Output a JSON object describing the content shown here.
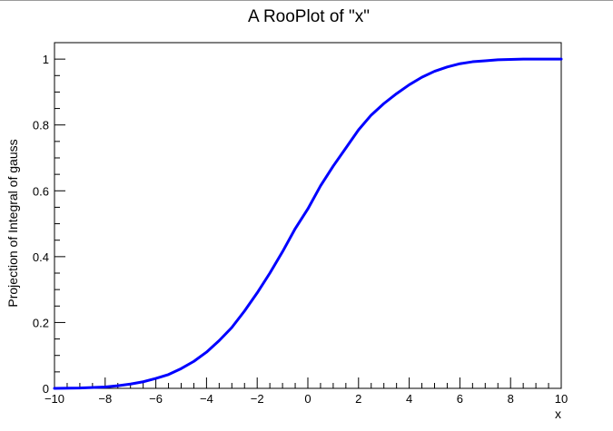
{
  "chart_data": {
    "type": "line",
    "title": "A RooPlot of \"x\"",
    "xlabel": "x",
    "ylabel": "Projection of Integral of gauss",
    "xlim": [
      -10,
      10
    ],
    "ylim": [
      0,
      1.05
    ],
    "grid": false,
    "legend": "none",
    "x_ticks": [
      "−10",
      "−8",
      "−6",
      "−4",
      "−2",
      "0",
      "2",
      "4",
      "6",
      "8",
      "10"
    ],
    "y_ticks": [
      "0",
      "0.2",
      "0.4",
      "0.6",
      "0.8",
      "1"
    ],
    "series": [
      {
        "color": "#0000ff",
        "x": [
          -10,
          -9,
          -8,
          -7.5,
          -7,
          -6.5,
          -6,
          -5.5,
          -5,
          -4.5,
          -4,
          -3.5,
          -3,
          -2.5,
          -2,
          -1.5,
          -1,
          -0.5,
          0,
          0.5,
          1,
          1.5,
          2,
          2.5,
          3,
          3.5,
          4,
          4.5,
          5,
          5.5,
          6,
          6.5,
          7,
          7.5,
          8,
          8.5,
          9,
          9.5,
          10
        ],
        "y": [
          0.0,
          0.001,
          0.004,
          0.008,
          0.013,
          0.02,
          0.03,
          0.042,
          0.06,
          0.082,
          0.11,
          0.145,
          0.185,
          0.235,
          0.29,
          0.35,
          0.415,
          0.485,
          0.545,
          0.615,
          0.675,
          0.73,
          0.785,
          0.83,
          0.865,
          0.895,
          0.922,
          0.945,
          0.963,
          0.976,
          0.986,
          0.992,
          0.995,
          0.998,
          0.999,
          1.0,
          1.0,
          1.0,
          1.0
        ]
      }
    ]
  }
}
